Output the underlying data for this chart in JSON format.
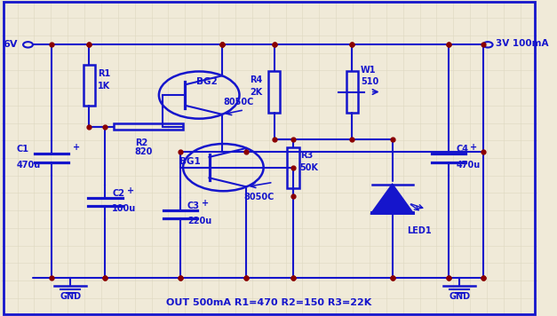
{
  "bg_color": "#f0ead8",
  "grid_color": "#ddd8c0",
  "cc": "#1515cc",
  "dot_color": "#8b0000",
  "title": "OUT 500mA R1=470 R2=150 R3=22K",
  "input_label": "6V",
  "output_label": "3V 100mA",
  "gnd_label": "GND"
}
